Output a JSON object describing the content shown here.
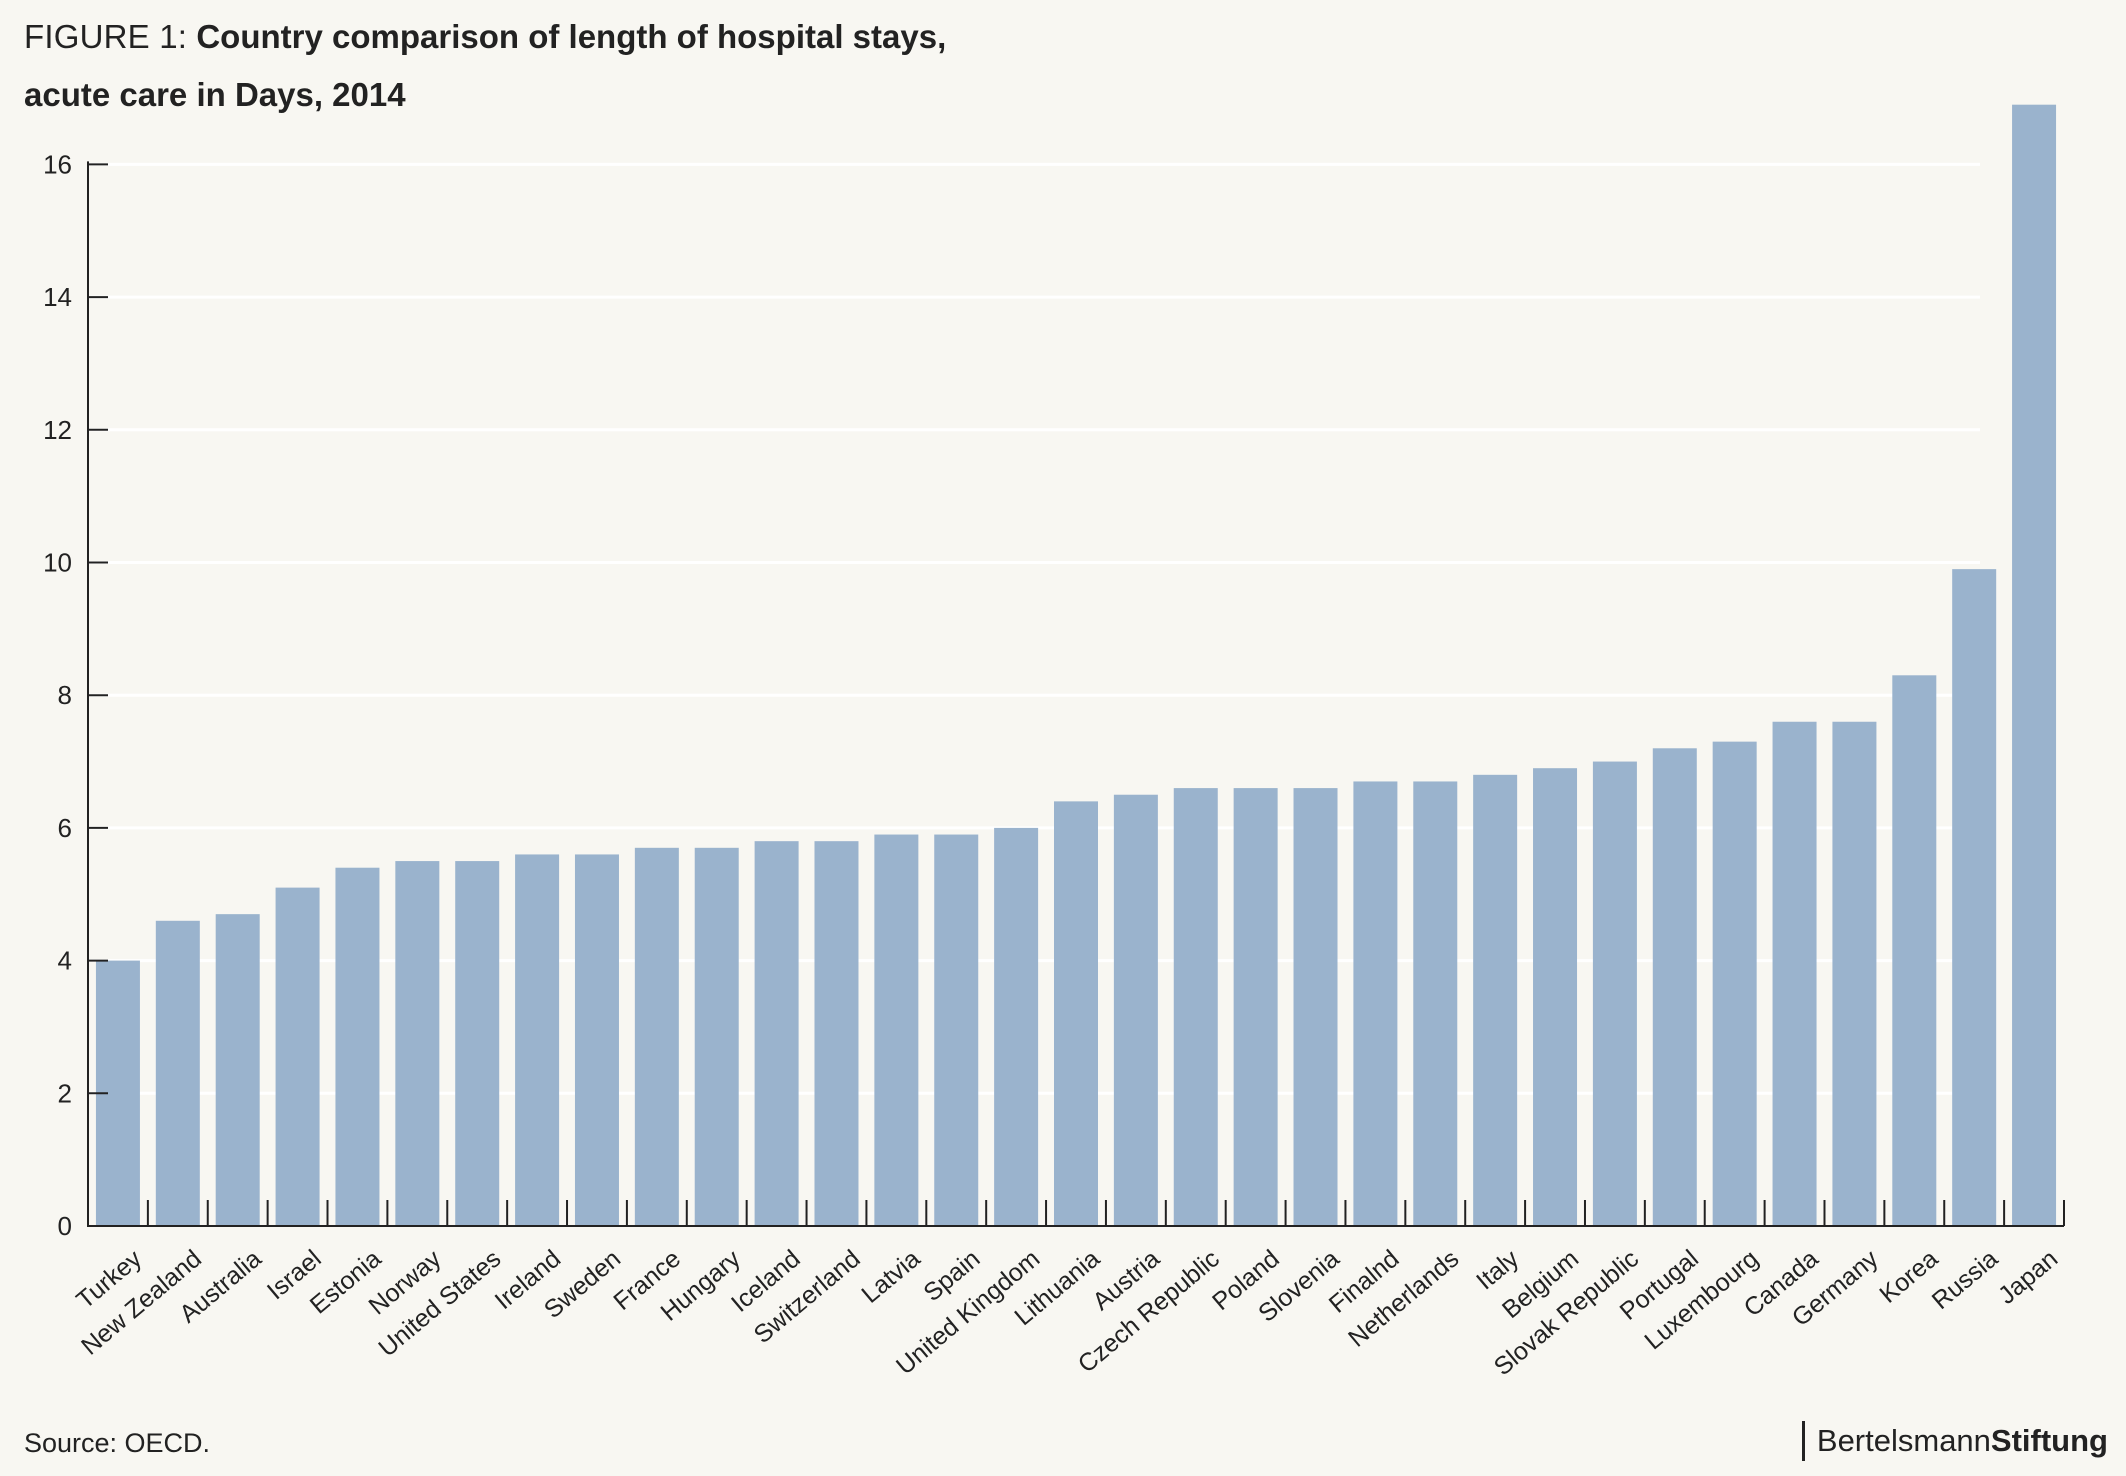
{
  "header": {
    "figure_label": "FIGURE 1:",
    "title_line1": "Country comparison of length of hospital stays,",
    "title_line2": "acute care in Days, 2014"
  },
  "footer": {
    "source": "Source: OECD.",
    "logo_part1": "Bertelsmann",
    "logo_part2": "Stiftung"
  },
  "colors": {
    "bar": "#9ab3cd",
    "background": "#f8f7f2",
    "grid": "#ffffff",
    "axis": "#222222"
  },
  "chart_data": {
    "type": "bar",
    "title": "Country comparison of length of hospital stays, acute care in Days, 2014",
    "xlabel": "",
    "ylabel": "",
    "ylim": [
      0,
      16
    ],
    "yticks": [
      0,
      2,
      4,
      6,
      8,
      10,
      12,
      14,
      16
    ],
    "grid": true,
    "categories": [
      "Turkey",
      "New Zealand",
      "Australia",
      "Israel",
      "Estonia",
      "Norway",
      "United States",
      "Ireland",
      "Sweden",
      "France",
      "Hungary",
      "Iceland",
      "Switzerland",
      "Latvia",
      "Spain",
      "United Kingdom",
      "Lithuania",
      "Austria",
      "Czech Republic",
      "Poland",
      "Slovenia",
      "Finalnd",
      "Netherlands",
      "Italy",
      "Belgium",
      "Slovak Republic",
      "Portugal",
      "Luxembourg",
      "Canada",
      "Germany",
      "Korea",
      "Russia",
      "Japan"
    ],
    "values": [
      4.0,
      4.6,
      4.7,
      5.1,
      5.4,
      5.5,
      5.5,
      5.6,
      5.6,
      5.7,
      5.7,
      5.8,
      5.8,
      5.9,
      5.9,
      6.0,
      6.4,
      6.5,
      6.6,
      6.6,
      6.6,
      6.7,
      6.7,
      6.8,
      6.9,
      7.0,
      7.2,
      7.3,
      7.6,
      7.6,
      8.3,
      9.9,
      16.9
    ]
  }
}
